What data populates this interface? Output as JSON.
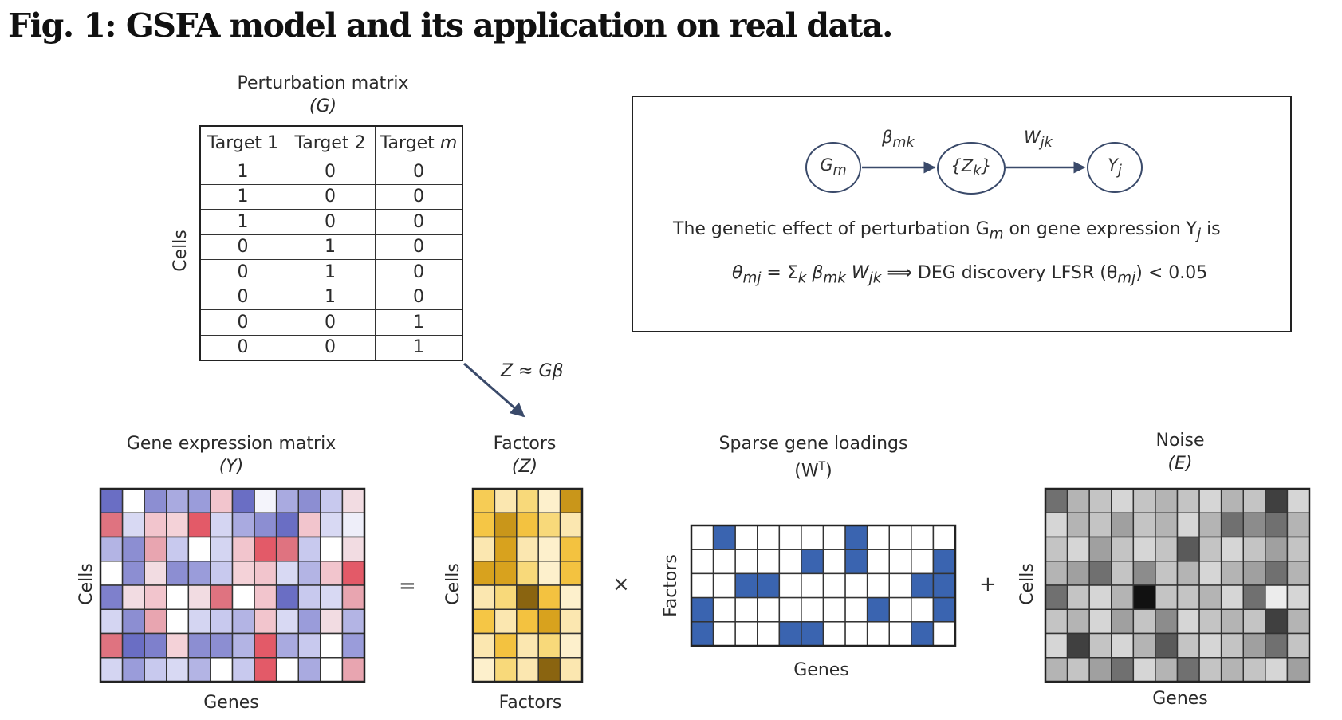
{
  "figure_title": "Fig. 1: GSFA model and its application on real data.",
  "perturbation_matrix": {
    "title": "Perturbation matrix",
    "symbol": "(G)",
    "row_axis_label": "Cells",
    "columns": [
      "Target 1",
      "Target 2",
      "Target m"
    ],
    "rows": [
      [
        "1",
        "0",
        "0"
      ],
      [
        "1",
        "0",
        "0"
      ],
      [
        "1",
        "0",
        "0"
      ],
      [
        "0",
        "1",
        "0"
      ],
      [
        "0",
        "1",
        "0"
      ],
      [
        "0",
        "1",
        "0"
      ],
      [
        "0",
        "0",
        "1"
      ],
      [
        "0",
        "0",
        "1"
      ]
    ]
  },
  "arrow_equation": "Z ≈ Gβ",
  "graph_model": {
    "nodes": [
      {
        "main": "G",
        "sub": "m"
      },
      {
        "main": "{Z",
        "sub": "k",
        "close": "}"
      },
      {
        "main": "Y",
        "sub": "j"
      }
    ],
    "edges": [
      {
        "main": "β",
        "sub": "mk"
      },
      {
        "main": "W",
        "sub": "jk"
      }
    ],
    "description": {
      "pre": "The genetic effect of perturbation G",
      "sub1": "m",
      "mid": " on gene expression Y",
      "sub2": "j",
      "post": " is"
    },
    "formula": {
      "theta": "θ",
      "theta_sub": "mj",
      "sum_part": " = Σ",
      "sum_sub": "k",
      "beta": " β",
      "beta_sub": "mk",
      "w": " W",
      "w_sub": "jk",
      "rest": " ⟹ DEG discovery LFSR (θ",
      "rest_sub": "mj",
      "tail": ") < 0.05"
    }
  },
  "gene_expression": {
    "title": "Gene expression matrix",
    "symbol": "(Y)",
    "x_label": "Genes",
    "y_label": "Cells",
    "cells": [
      [
        "#6a6ec4",
        "#ffffff",
        "#8c8ed2",
        "#a9aae0",
        "#9a9cda",
        "#f2c5cd",
        "#6a6ec4",
        "#f4f4fb",
        "#a9aae0",
        "#8c8ed2",
        "#c8c9ee",
        "#f2dce2"
      ],
      [
        "#df7380",
        "#d8d9f3",
        "#f2c5cd",
        "#f4d2d8",
        "#e35a68",
        "#d4d5f2",
        "#a9aae0",
        "#8c8ed2",
        "#6a6ec4",
        "#f2c5cd",
        "#d8d9f3",
        "#eeeef9"
      ],
      [
        "#b3b4e4",
        "#8c8ed2",
        "#e8a5b0",
        "#c8c9ee",
        "#ffffff",
        "#d4d5f2",
        "#f2c5cd",
        "#e35a68",
        "#df7380",
        "#c8c9ee",
        "#ffffff",
        "#f2dce2"
      ],
      [
        "#ffffff",
        "#8c8ed2",
        "#f2dce2",
        "#8c8ed2",
        "#9a9cda",
        "#c8c9ee",
        "#f4d2d8",
        "#f2c5cd",
        "#d8d9f3",
        "#b3b4e4",
        "#f2c5cd",
        "#e35a68"
      ],
      [
        "#7e80cc",
        "#f2dce2",
        "#f2c5cd",
        "#ffffff",
        "#f2dce2",
        "#df7380",
        "#ffffff",
        "#f2c5cd",
        "#6a6ec4",
        "#c8c9ee",
        "#d8d9f3",
        "#e8a5b0"
      ],
      [
        "#d4d5f2",
        "#8c8ed2",
        "#e8a5b0",
        "#ffffff",
        "#d4d5f2",
        "#c8c9ee",
        "#b3b4e4",
        "#f2c5cd",
        "#d8d9f3",
        "#9a9cda",
        "#f2dce2",
        "#b3b4e4"
      ],
      [
        "#df7380",
        "#6a6ec4",
        "#7e80cc",
        "#f4d2d8",
        "#8c8ed2",
        "#8c8ed2",
        "#b3b4e4",
        "#e35a68",
        "#a9aae0",
        "#c8c9ee",
        "#ffffff",
        "#9a9cda"
      ],
      [
        "#d4d5f2",
        "#9a9cda",
        "#c8c9ee",
        "#d8d9f3",
        "#b3b4e4",
        "#ffffff",
        "#c8c9ee",
        "#e35a68",
        "#ffffff",
        "#a9aae0",
        "#ffffff",
        "#e8a5b0"
      ]
    ]
  },
  "equals_sign": "=",
  "factors": {
    "title": "Factors",
    "symbol": "(Z)",
    "x_label": "Factors",
    "y_label": "Cells",
    "cells": [
      [
        "#f6cc55",
        "#fbe7b0",
        "#f8d97a",
        "#fdf0cc",
        "#c9961a"
      ],
      [
        "#f5c645",
        "#c9961a",
        "#f3c240",
        "#f8d97a",
        "#fbe7b0"
      ],
      [
        "#fbe7b0",
        "#d8a21e",
        "#fbe7b0",
        "#fdf0cc",
        "#f3c240"
      ],
      [
        "#d8a21e",
        "#d8a21e",
        "#f8d97a",
        "#fdf0cc",
        "#f3c240"
      ],
      [
        "#fbe7b0",
        "#f8d97a",
        "#8a6410",
        "#f3c240",
        "#fdf0cc"
      ],
      [
        "#f5c645",
        "#fbe7b0",
        "#f3c240",
        "#d8a21e",
        "#fbe7b0"
      ],
      [
        "#fbe7b0",
        "#f3c240",
        "#fbe7b0",
        "#f8d97a",
        "#fdf0cc"
      ],
      [
        "#fdf0cc",
        "#f8d97a",
        "#fbe7b0",
        "#8a6410",
        "#fbe7b0"
      ]
    ]
  },
  "times_sign": "×",
  "loadings": {
    "title": "Sparse gene loadings",
    "symbol_main": "(W",
    "symbol_sup": "T",
    "symbol_close": ")",
    "x_label": "Genes",
    "y_label": "Factors",
    "cells": [
      [
        "#ffffff",
        "#3a64b0",
        "#ffffff",
        "#ffffff",
        "#ffffff",
        "#ffffff",
        "#ffffff",
        "#3a64b0",
        "#ffffff",
        "#ffffff",
        "#ffffff",
        "#ffffff"
      ],
      [
        "#ffffff",
        "#ffffff",
        "#ffffff",
        "#ffffff",
        "#ffffff",
        "#3a64b0",
        "#ffffff",
        "#3a64b0",
        "#ffffff",
        "#ffffff",
        "#ffffff",
        "#3a64b0"
      ],
      [
        "#ffffff",
        "#ffffff",
        "#3a64b0",
        "#3a64b0",
        "#ffffff",
        "#ffffff",
        "#ffffff",
        "#ffffff",
        "#ffffff",
        "#ffffff",
        "#3a64b0",
        "#3a64b0"
      ],
      [
        "#3a64b0",
        "#ffffff",
        "#ffffff",
        "#ffffff",
        "#ffffff",
        "#ffffff",
        "#ffffff",
        "#ffffff",
        "#3a64b0",
        "#ffffff",
        "#ffffff",
        "#3a64b0"
      ],
      [
        "#3a64b0",
        "#ffffff",
        "#ffffff",
        "#ffffff",
        "#3a64b0",
        "#3a64b0",
        "#ffffff",
        "#ffffff",
        "#ffffff",
        "#ffffff",
        "#3a64b0",
        "#ffffff"
      ]
    ]
  },
  "plus_sign": "+",
  "noise": {
    "title": "Noise",
    "symbol": "(E)",
    "x_label": "Genes",
    "y_label": "Cells",
    "cells": [
      [
        "#707070",
        "#b4b4b4",
        "#c4c4c4",
        "#d6d6d6",
        "#c4c4c4",
        "#b4b4b4",
        "#c4c4c4",
        "#d6d6d6",
        "#b4b4b4",
        "#c4c4c4",
        "#404040",
        "#d6d6d6"
      ],
      [
        "#d6d6d6",
        "#b4b4b4",
        "#c4c4c4",
        "#a0a0a0",
        "#c4c4c4",
        "#b4b4b4",
        "#d6d6d6",
        "#b4b4b4",
        "#707070",
        "#8c8c8c",
        "#707070",
        "#b4b4b4"
      ],
      [
        "#c4c4c4",
        "#d6d6d6",
        "#a0a0a0",
        "#c4c4c4",
        "#d6d6d6",
        "#c4c4c4",
        "#5a5a5a",
        "#c4c4c4",
        "#d6d6d6",
        "#c4c4c4",
        "#a0a0a0",
        "#c4c4c4"
      ],
      [
        "#b4b4b4",
        "#a0a0a0",
        "#707070",
        "#c4c4c4",
        "#8c8c8c",
        "#c4c4c4",
        "#b4b4b4",
        "#d6d6d6",
        "#b4b4b4",
        "#a0a0a0",
        "#707070",
        "#b4b4b4"
      ],
      [
        "#707070",
        "#c4c4c4",
        "#d6d6d6",
        "#b4b4b4",
        "#111111",
        "#c4c4c4",
        "#c4c4c4",
        "#b4b4b4",
        "#d6d6d6",
        "#707070",
        "#ececec",
        "#d6d6d6"
      ],
      [
        "#c4c4c4",
        "#b4b4b4",
        "#d6d6d6",
        "#a0a0a0",
        "#c4c4c4",
        "#8c8c8c",
        "#d6d6d6",
        "#c4c4c4",
        "#b4b4b4",
        "#c4c4c4",
        "#404040",
        "#b4b4b4"
      ],
      [
        "#d6d6d6",
        "#404040",
        "#c4c4c4",
        "#d6d6d6",
        "#b4b4b4",
        "#5a5a5a",
        "#c4c4c4",
        "#d6d6d6",
        "#c4c4c4",
        "#a0a0a0",
        "#707070",
        "#c4c4c4"
      ],
      [
        "#b4b4b4",
        "#c4c4c4",
        "#a0a0a0",
        "#707070",
        "#d6d6d6",
        "#b4b4b4",
        "#707070",
        "#c4c4c4",
        "#b4b4b4",
        "#c4c4c4",
        "#d6d6d6",
        "#a0a0a0"
      ]
    ]
  }
}
